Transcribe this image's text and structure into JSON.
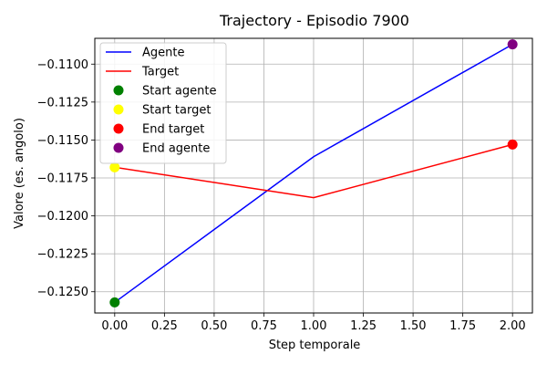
{
  "chart_data": {
    "type": "line",
    "title": "Trajectory - Episodio 7900",
    "xlabel": "Step temporale",
    "ylabel": "Valore (es. angolo)",
    "xlim": [
      -0.1,
      2.1
    ],
    "ylim": [
      -0.1264,
      -0.1083
    ],
    "xticks": [
      0.0,
      0.25,
      0.5,
      0.75,
      1.0,
      1.25,
      1.5,
      1.75,
      2.0
    ],
    "xtick_labels": [
      "0.00",
      "0.25",
      "0.50",
      "0.75",
      "1.00",
      "1.25",
      "1.50",
      "1.75",
      "2.00"
    ],
    "yticks": [
      -0.125,
      -0.1225,
      -0.12,
      -0.1175,
      -0.115,
      -0.1125,
      -0.11
    ],
    "ytick_labels": [
      "−0.1250",
      "−0.1225",
      "−0.1200",
      "−0.1175",
      "−0.1150",
      "−0.1125",
      "−0.1100"
    ],
    "grid": true,
    "legend_position": "top-left",
    "series": [
      {
        "name": "Agente",
        "color": "#0000ff",
        "x": [
          0,
          1,
          2
        ],
        "y": [
          -0.1257,
          -0.1161,
          -0.1087
        ]
      },
      {
        "name": "Target",
        "color": "#ff0000",
        "x": [
          0,
          1,
          2
        ],
        "y": [
          -0.1168,
          -0.1188,
          -0.1153
        ]
      }
    ],
    "markers": [
      {
        "name": "Start agente",
        "color": "#008000",
        "x": 0,
        "y": -0.1257
      },
      {
        "name": "Start target",
        "color": "#ffff00",
        "x": 0,
        "y": -0.1168
      },
      {
        "name": "End target",
        "color": "#ff0000",
        "x": 2,
        "y": -0.1153
      },
      {
        "name": "End agente",
        "color": "#800080",
        "x": 2,
        "y": -0.1087
      }
    ]
  }
}
